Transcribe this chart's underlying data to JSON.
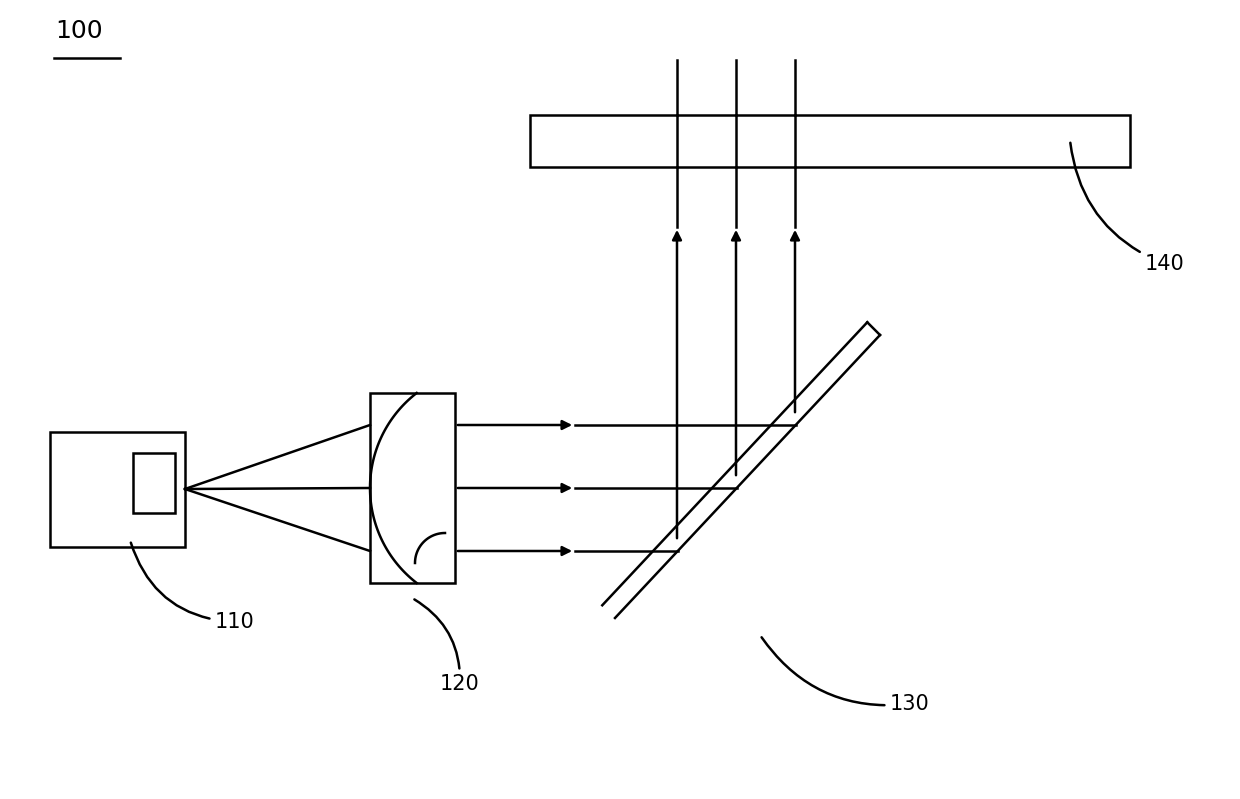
{
  "bg_color": "#ffffff",
  "line_color": "#000000",
  "label_100": "100",
  "label_110": "110",
  "label_120": "120",
  "label_130": "130",
  "label_140": "140",
  "figsize": [
    12.4,
    7.99
  ],
  "dpi": 100
}
